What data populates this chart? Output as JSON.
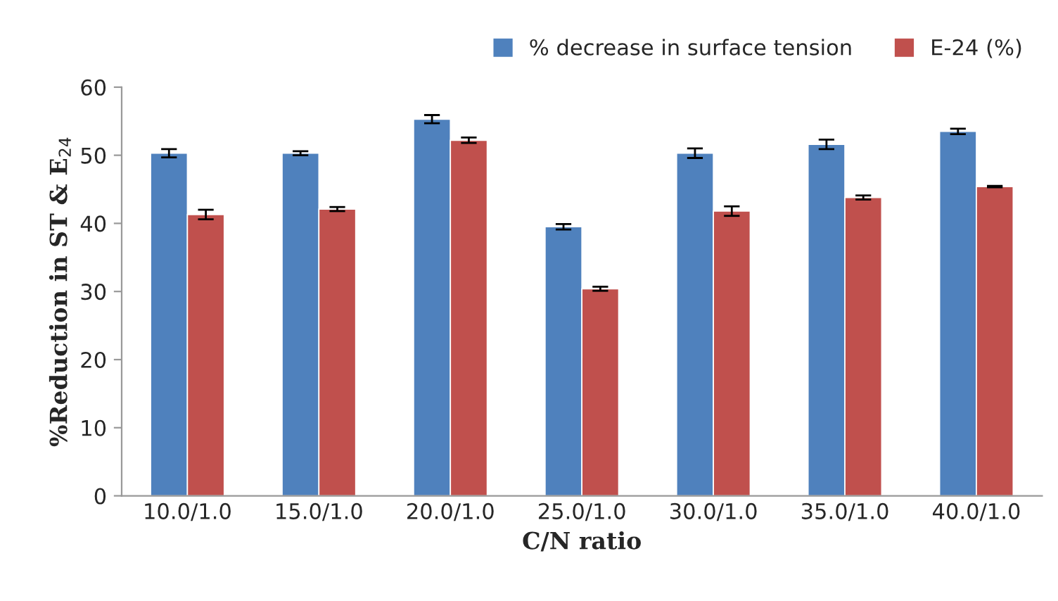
{
  "chart_data": {
    "type": "bar",
    "xlabel": "C/N ratio",
    "ylabel": "%Reduction in ST & E$_{24}$",
    "categories": [
      "10.0/1.0",
      "15.0/1.0",
      "20.0/1.0",
      "25.0/1.0",
      "30.0/1.0",
      "35.0/1.0",
      "40.0/1.0"
    ],
    "series": [
      {
        "name": "% decrease in surface tension",
        "color": "#4f81bd",
        "values": [
          50.3,
          50.3,
          55.3,
          39.5,
          50.3,
          51.6,
          53.5
        ],
        "errors": [
          0.6,
          0.3,
          0.6,
          0.4,
          0.7,
          0.7,
          0.4
        ]
      },
      {
        "name": "E-24 (%)",
        "color": "#c0504d",
        "values": [
          41.3,
          42.1,
          52.2,
          30.4,
          41.8,
          43.8,
          45.4
        ],
        "errors": [
          0.7,
          0.3,
          0.4,
          0.3,
          0.7,
          0.3,
          0.1
        ]
      }
    ],
    "ylim": [
      0,
      60
    ],
    "yticks": [
      0,
      10,
      20,
      30,
      40,
      50,
      60
    ],
    "grid": false,
    "legend": "top right"
  }
}
